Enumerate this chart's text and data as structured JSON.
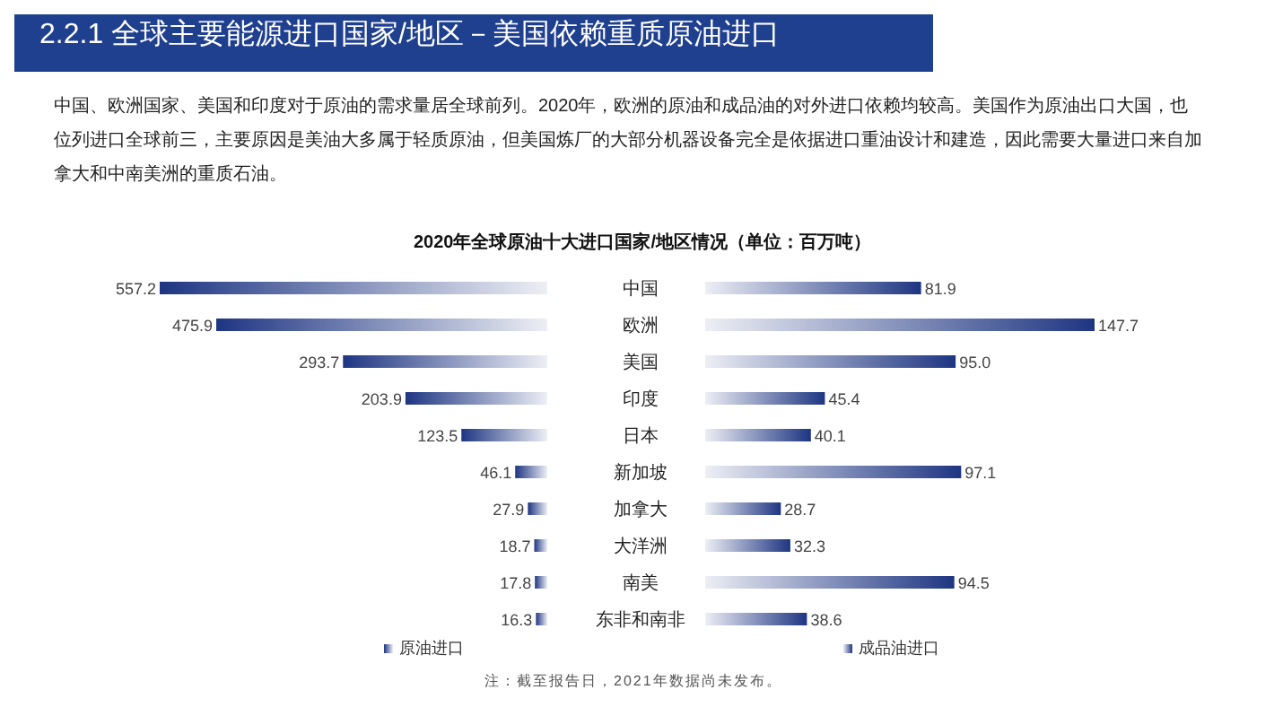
{
  "chart_data": [
    {
      "type": "bar",
      "orientation": "horizontal",
      "title": "2020年全球原油十大进口国家/地区情况（单位：百万吨）",
      "annotations": [
        "2.2.1 全球主要能源进口国家/地区－美国依赖重质原油进口",
        "中国、欧洲国家、美国和印度对于原油的需求量居全球前列。2020年，欧洲的原油和成品油的对外进口依赖均较高。美国作为原油出口大国，也位列进口全球前三，主要原因是美油大多属于轻质原油，但美国炼厂的大部分机器设备完全是依据进口重油设计和建造，因此需要大量进口来自加拿大和中南美洲的重质石油。",
        "注：截至报告日，2021年数据尚未发布。"
      ],
      "categories": [
        "中国",
        "欧洲",
        "美国",
        "印度",
        "日本",
        "新加坡",
        "加拿大",
        "大洋洲",
        "南美",
        "东非和南非"
      ],
      "series": [
        {
          "name": "原油进口",
          "color": "#1e3582",
          "values": [
            557.2,
            475.9,
            293.7,
            203.9,
            123.5,
            46.1,
            27.9,
            18.7,
            17.8,
            16.3
          ]
        }
      ],
      "data_labels": true,
      "legend": "bottom",
      "tick_labels": "y"
    },
    {
      "type": "bar",
      "orientation": "horizontal",
      "categories": [
        null,
        null,
        null,
        null,
        null,
        null,
        null,
        null,
        null,
        null
      ],
      "series": [
        {
          "name": "成品油进口",
          "color": "#1e3582",
          "values": [
            81.9,
            147.7,
            95.0,
            45.4,
            40.1,
            97.1,
            28.7,
            32.3,
            94.5,
            38.6
          ],
          "value_labels": [
            "81.9",
            "147.7",
            "95.0",
            "45.4",
            "40.1",
            "97.1",
            "28.7",
            "32.3",
            "94.5",
            "38.6"
          ]
        }
      ],
      "legend": "bottom",
      "tick_labels": false
    }
  ]
}
